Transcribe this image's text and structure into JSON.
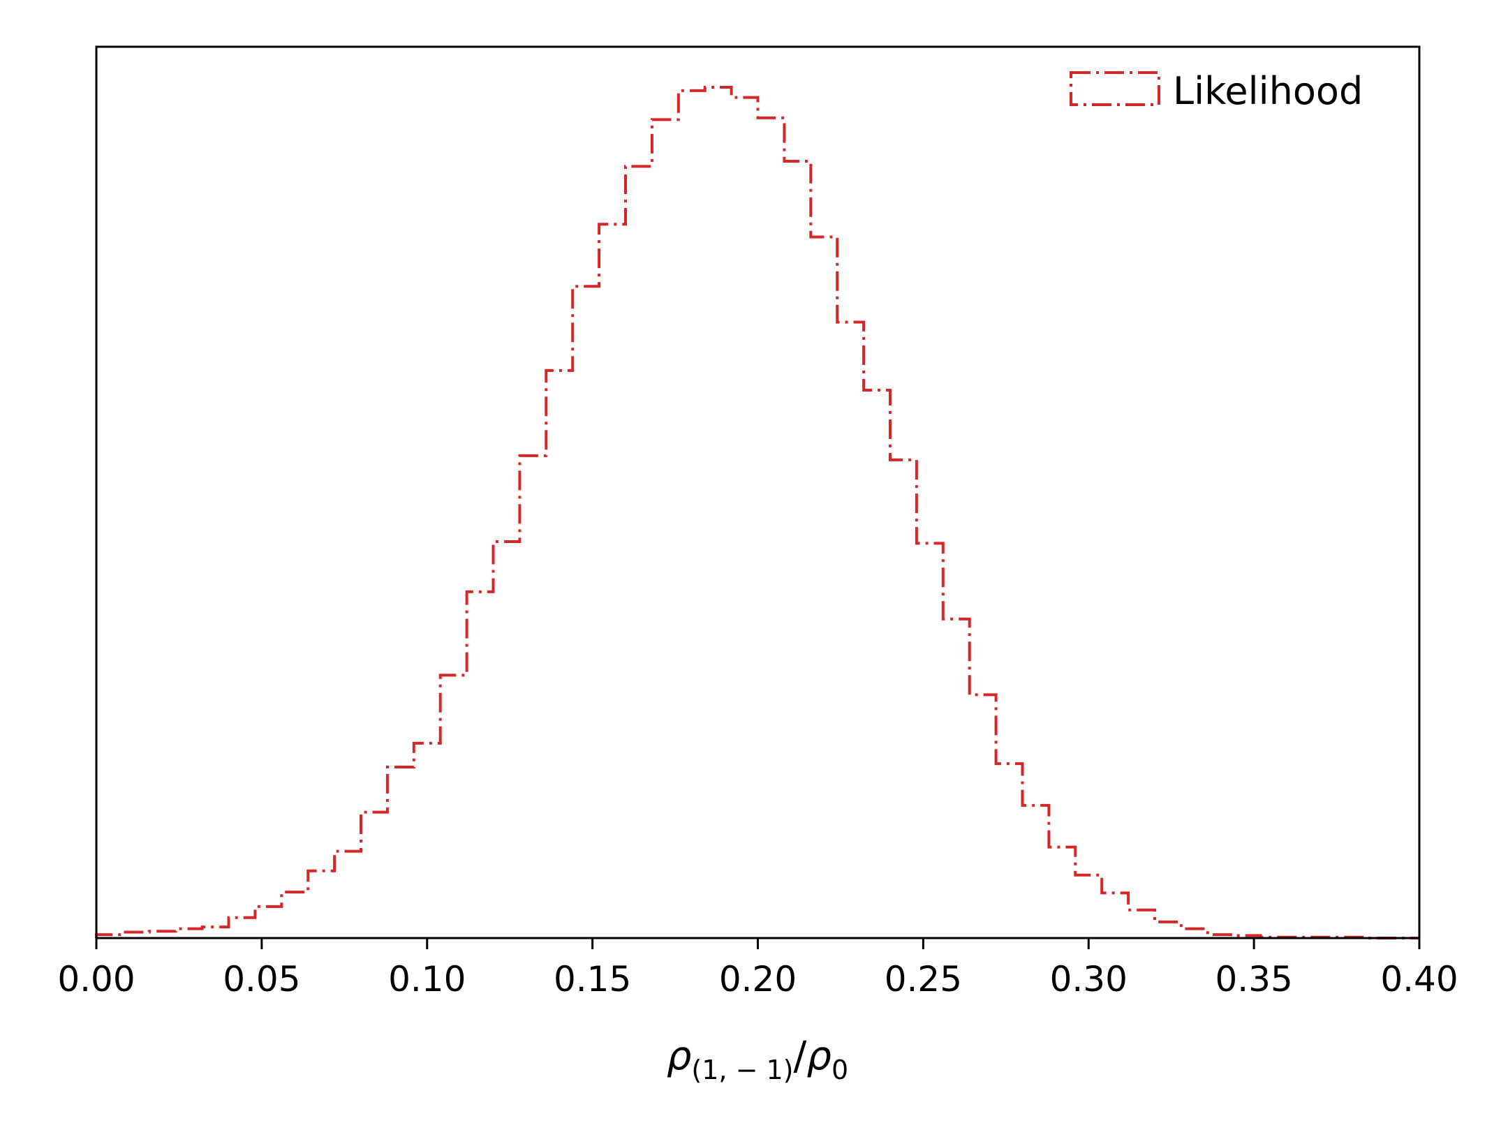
{
  "chart_data": {
    "type": "histogram-step",
    "xlabel": {
      "rho": "ρ",
      "sub1": "(1, − 1)",
      "slash": "/",
      "rho2": "ρ",
      "sub2": "0"
    },
    "xlim": [
      0.0,
      0.4
    ],
    "xticks": [
      "0.00",
      "0.05",
      "0.10",
      "0.15",
      "0.20",
      "0.25",
      "0.30",
      "0.35",
      "0.40"
    ],
    "yticks_visible": false,
    "legend": {
      "label": "Likelihood",
      "placement": "upper right"
    },
    "series": [
      {
        "name": "Likelihood",
        "color": "#d62728",
        "linestyle": "dashdot",
        "bin_width": 0.008,
        "bin_start": 0.0,
        "values": [
          0.004,
          0.007,
          0.008,
          0.011,
          0.013,
          0.024,
          0.037,
          0.054,
          0.079,
          0.102,
          0.148,
          0.201,
          0.229,
          0.309,
          0.407,
          0.466,
          0.567,
          0.667,
          0.766,
          0.839,
          0.907,
          0.962,
          0.996,
          1.0,
          0.988,
          0.964,
          0.913,
          0.824,
          0.724,
          0.644,
          0.562,
          0.464,
          0.375,
          0.286,
          0.205,
          0.156,
          0.107,
          0.074,
          0.053,
          0.033,
          0.019,
          0.011,
          0.004,
          0.003,
          0.001,
          0.001,
          0.001,
          0.001,
          0.0,
          0.0
        ]
      }
    ]
  }
}
